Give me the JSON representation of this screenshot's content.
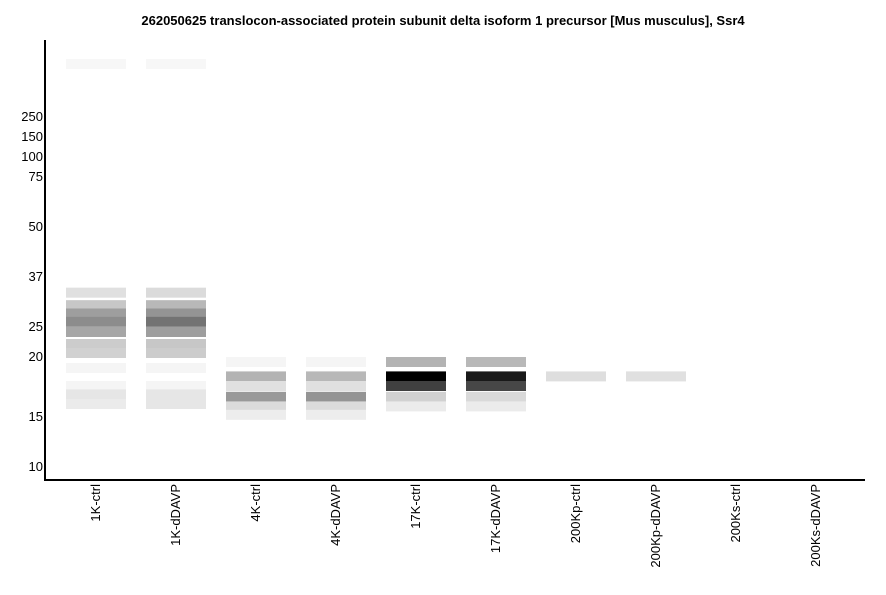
{
  "chart_data": {
    "type": "heatmap",
    "title": "262050625 translocon-associated protein subunit delta isoform 1 precursor [Mus musculus], Ssr4",
    "y_ticks": [
      "250",
      "150",
      "100",
      "75",
      "50",
      "37",
      "25",
      "20",
      "15",
      "10"
    ],
    "lanes": [
      "1K-ctrl",
      "1K-dDAVP",
      "4K-ctrl",
      "4K-dDAVP",
      "17K-ctrl",
      "17K-dDAVP",
      "200Kp-ctrl",
      "200Kp-dDAVP",
      "200Ks-ctrl",
      "200Ks-dDAVP"
    ],
    "bands": [
      [
        {
          "mw": 400,
          "intensity": 0.03
        },
        {
          "mw": 33,
          "intensity": 0.12
        },
        {
          "mw": 30,
          "intensity": 0.22
        },
        {
          "mw": 28,
          "intensity": 0.38
        },
        {
          "mw": 26,
          "intensity": 0.45
        },
        {
          "mw": 24,
          "intensity": 0.35
        },
        {
          "mw": 22,
          "intensity": 0.2
        },
        {
          "mw": 20.5,
          "intensity": 0.18
        },
        {
          "mw": 19,
          "intensity": 0.04
        },
        {
          "mw": 17.5,
          "intensity": 0.04
        },
        {
          "mw": 16.8,
          "intensity": 0.1
        },
        {
          "mw": 16,
          "intensity": 0.08
        }
      ],
      [
        {
          "mw": 400,
          "intensity": 0.03
        },
        {
          "mw": 33,
          "intensity": 0.14
        },
        {
          "mw": 30,
          "intensity": 0.28
        },
        {
          "mw": 28,
          "intensity": 0.42
        },
        {
          "mw": 26,
          "intensity": 0.55
        },
        {
          "mw": 24,
          "intensity": 0.38
        },
        {
          "mw": 22,
          "intensity": 0.22
        },
        {
          "mw": 20.5,
          "intensity": 0.2
        },
        {
          "mw": 19,
          "intensity": 0.04
        },
        {
          "mw": 17.5,
          "intensity": 0.04
        },
        {
          "mw": 16.8,
          "intensity": 0.1
        },
        {
          "mw": 16,
          "intensity": 0.1
        }
      ],
      [
        {
          "mw": 19.5,
          "intensity": 0.04
        },
        {
          "mw": 18.3,
          "intensity": 0.3
        },
        {
          "mw": 17.5,
          "intensity": 0.12
        },
        {
          "mw": 16.6,
          "intensity": 0.4
        },
        {
          "mw": 15.8,
          "intensity": 0.14
        },
        {
          "mw": 15.1,
          "intensity": 0.07
        }
      ],
      [
        {
          "mw": 19.5,
          "intensity": 0.04
        },
        {
          "mw": 18.3,
          "intensity": 0.28
        },
        {
          "mw": 17.5,
          "intensity": 0.12
        },
        {
          "mw": 16.6,
          "intensity": 0.42
        },
        {
          "mw": 15.8,
          "intensity": 0.14
        },
        {
          "mw": 15.1,
          "intensity": 0.07
        }
      ],
      [
        {
          "mw": 19.5,
          "intensity": 0.3
        },
        {
          "mw": 18.3,
          "intensity": 1.0
        },
        {
          "mw": 17.5,
          "intensity": 0.75
        },
        {
          "mw": 16.6,
          "intensity": 0.18
        },
        {
          "mw": 15.8,
          "intensity": 0.08
        }
      ],
      [
        {
          "mw": 19.5,
          "intensity": 0.28
        },
        {
          "mw": 18.3,
          "intensity": 0.9
        },
        {
          "mw": 17.5,
          "intensity": 0.72
        },
        {
          "mw": 16.6,
          "intensity": 0.15
        },
        {
          "mw": 15.8,
          "intensity": 0.08
        }
      ],
      [
        {
          "mw": 18.3,
          "intensity": 0.13
        }
      ],
      [
        {
          "mw": 18.3,
          "intensity": 0.12
        }
      ],
      [],
      []
    ]
  }
}
